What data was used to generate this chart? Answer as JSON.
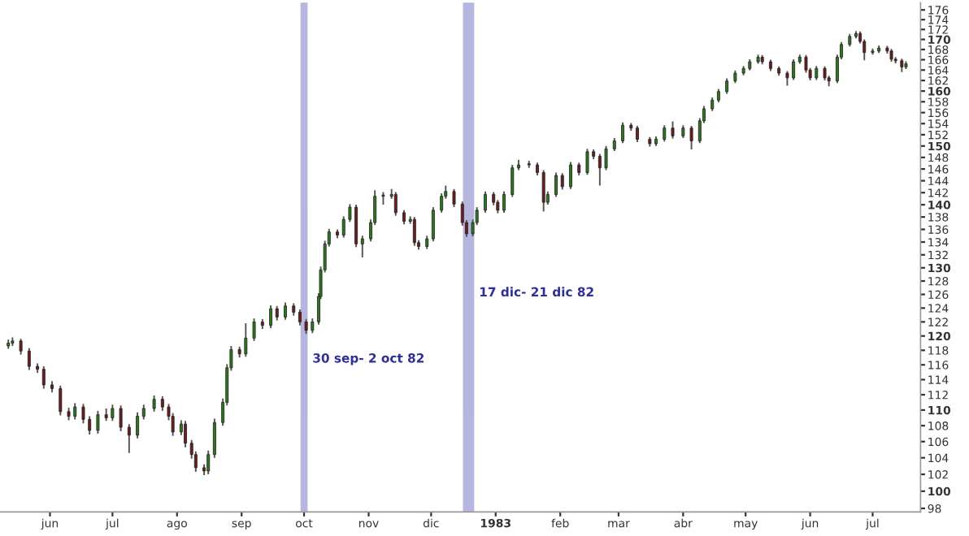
{
  "chart_data": {
    "type": "candlestick",
    "x": [
      "1982-05-12",
      "1982-05-14",
      "1982-05-18",
      "1982-05-22",
      "1982-05-26",
      "1982-05-29",
      "1982-06-02",
      "1982-06-06",
      "1982-06-10",
      "1982-06-13",
      "1982-06-17",
      "1982-06-20",
      "1982-06-24",
      "1982-06-28",
      "1982-07-01",
      "1982-07-05",
      "1982-07-09",
      "1982-07-13",
      "1982-07-16",
      "1982-07-21",
      "1982-07-25",
      "1982-07-28",
      "1982-07-30",
      "1982-08-03",
      "1982-08-05",
      "1982-08-08",
      "1982-08-10",
      "1982-08-14",
      "1982-08-16",
      "1982-08-19",
      "1982-08-23",
      "1982-08-25",
      "1982-08-27",
      "1982-08-31",
      "1982-09-03",
      "1982-09-07",
      "1982-09-11",
      "1982-09-15",
      "1982-09-18",
      "1982-09-22",
      "1982-09-26",
      "1982-09-29",
      "1982-10-02",
      "1982-10-05",
      "1982-10-08",
      "1982-10-09",
      "1982-10-11",
      "1982-10-13",
      "1982-10-17",
      "1982-10-20",
      "1982-10-23",
      "1982-10-26",
      "1982-10-29",
      "1982-11-02",
      "1982-11-04",
      "1982-11-08",
      "1982-11-12",
      "1982-11-14",
      "1982-11-18",
      "1982-11-21",
      "1982-11-23",
      "1982-11-25",
      "1982-11-29",
      "1982-12-02",
      "1982-12-06",
      "1982-12-08",
      "1982-12-12",
      "1982-12-16",
      "1982-12-18",
      "1982-12-21",
      "1982-12-23",
      "1982-12-27",
      "1982-12-31",
      "1983-01-02",
      "1983-01-05",
      "1983-01-09",
      "1983-01-12",
      "1983-01-17",
      "1983-01-21",
      "1983-01-24",
      "1983-01-26",
      "1983-01-30",
      "1983-02-02",
      "1983-02-06",
      "1983-02-10",
      "1983-02-14",
      "1983-02-17",
      "1983-02-20",
      "1983-02-23",
      "1983-02-27",
      "1983-03-03",
      "1983-03-07",
      "1983-03-10",
      "1983-03-16",
      "1983-03-19",
      "1983-03-23",
      "1983-03-27",
      "1983-04-01",
      "1983-04-05",
      "1983-04-09",
      "1983-04-11",
      "1983-04-15",
      "1983-04-18",
      "1983-04-22",
      "1983-04-26",
      "1983-04-30",
      "1983-05-03",
      "1983-05-07",
      "1983-05-09",
      "1983-05-13",
      "1983-05-17",
      "1983-05-21",
      "1983-05-24",
      "1983-05-27",
      "1983-05-30",
      "1983-06-01",
      "1983-06-04",
      "1983-06-08",
      "1983-06-10",
      "1983-06-14",
      "1983-06-16",
      "1983-06-20",
      "1983-06-23",
      "1983-06-25",
      "1983-06-27",
      "1983-07-01",
      "1983-07-04",
      "1983-07-08",
      "1983-07-10",
      "1983-07-12",
      "1983-07-15",
      "1983-07-17"
    ],
    "ohlc": [
      [
        118.6,
        119.5,
        118.2,
        119.0
      ],
      [
        119.0,
        119.8,
        118.6,
        119.3
      ],
      [
        119.3,
        119.6,
        117.4,
        117.9
      ],
      [
        117.9,
        118.3,
        115.3,
        115.8
      ],
      [
        115.8,
        116.2,
        114.9,
        115.4
      ],
      [
        115.4,
        115.8,
        112.8,
        113.3
      ],
      [
        113.3,
        113.8,
        112.3,
        112.8
      ],
      [
        112.8,
        113.2,
        109.3,
        109.8
      ],
      [
        109.8,
        110.3,
        108.7,
        109.2
      ],
      [
        109.2,
        110.9,
        108.8,
        110.4
      ],
      [
        110.4,
        110.8,
        108.3,
        108.8
      ],
      [
        108.8,
        109.2,
        106.9,
        107.4
      ],
      [
        107.4,
        109.9,
        107.0,
        109.4
      ],
      [
        109.4,
        110.2,
        108.6,
        109.0
      ],
      [
        109.0,
        110.7,
        108.6,
        110.2
      ],
      [
        110.2,
        110.6,
        107.3,
        107.8
      ],
      [
        107.8,
        108.2,
        104.6,
        106.8
      ],
      [
        106.8,
        109.7,
        106.4,
        109.2
      ],
      [
        109.2,
        110.7,
        108.8,
        110.2
      ],
      [
        110.2,
        111.9,
        109.8,
        111.4
      ],
      [
        111.4,
        111.8,
        109.9,
        110.4
      ],
      [
        110.4,
        110.8,
        108.7,
        109.2
      ],
      [
        109.2,
        109.6,
        106.7,
        107.2
      ],
      [
        107.2,
        108.7,
        106.8,
        108.2
      ],
      [
        108.2,
        108.6,
        105.3,
        105.8
      ],
      [
        105.8,
        106.2,
        103.9,
        104.4
      ],
      [
        104.4,
        104.8,
        102.3,
        102.8
      ],
      [
        102.8,
        103.2,
        101.9,
        102.4
      ],
      [
        102.4,
        104.9,
        102.0,
        104.4
      ],
      [
        104.4,
        108.9,
        104.0,
        108.4
      ],
      [
        108.4,
        111.5,
        108.0,
        111.0
      ],
      [
        111.0,
        116.1,
        110.6,
        115.6
      ],
      [
        115.6,
        118.6,
        115.2,
        118.1
      ],
      [
        118.1,
        118.5,
        117.0,
        117.5
      ],
      [
        117.5,
        121.8,
        117.1,
        119.7
      ],
      [
        119.7,
        122.5,
        119.3,
        122.0
      ],
      [
        122.0,
        122.4,
        121.0,
        121.5
      ],
      [
        121.5,
        124.4,
        121.1,
        123.9
      ],
      [
        123.9,
        124.3,
        122.2,
        122.7
      ],
      [
        122.7,
        124.8,
        122.3,
        124.3
      ],
      [
        124.3,
        124.7,
        122.9,
        123.4
      ],
      [
        123.4,
        123.8,
        121.5,
        122.0
      ],
      [
        122.0,
        122.4,
        120.3,
        120.8
      ],
      [
        120.8,
        122.5,
        120.4,
        122.0
      ],
      [
        122.0,
        126.2,
        121.6,
        125.7
      ],
      [
        125.7,
        130.2,
        125.3,
        129.7
      ],
      [
        129.7,
        134.2,
        129.3,
        133.7
      ],
      [
        133.7,
        136.1,
        133.3,
        135.6
      ],
      [
        135.6,
        136.0,
        134.6,
        135.1
      ],
      [
        135.1,
        138.1,
        134.7,
        137.6
      ],
      [
        137.6,
        140.1,
        137.2,
        139.6
      ],
      [
        139.6,
        140.0,
        133.2,
        133.7
      ],
      [
        133.7,
        135.0,
        131.6,
        134.5
      ],
      [
        134.5,
        137.6,
        134.1,
        137.1
      ],
      [
        137.1,
        142.4,
        136.7,
        141.4
      ],
      [
        141.4,
        142.1,
        140.0,
        141.4
      ],
      [
        141.4,
        142.6,
        141.0,
        141.7
      ],
      [
        141.7,
        142.1,
        138.2,
        138.7
      ],
      [
        138.7,
        139.1,
        136.8,
        137.3
      ],
      [
        137.3,
        138.1,
        136.9,
        137.6
      ],
      [
        137.6,
        138.0,
        133.4,
        133.9
      ],
      [
        133.9,
        134.3,
        132.8,
        133.3
      ],
      [
        133.3,
        135.0,
        132.9,
        134.5
      ],
      [
        134.5,
        139.6,
        134.1,
        139.1
      ],
      [
        139.1,
        141.9,
        138.7,
        141.4
      ],
      [
        141.4,
        143.2,
        141.0,
        142.2
      ],
      [
        142.2,
        142.6,
        139.6,
        140.1
      ],
      [
        140.1,
        140.5,
        136.6,
        137.1
      ],
      [
        137.1,
        137.5,
        134.8,
        135.3
      ],
      [
        135.3,
        137.6,
        134.9,
        137.1
      ],
      [
        137.1,
        139.6,
        136.7,
        139.1
      ],
      [
        139.1,
        142.2,
        138.7,
        141.7
      ],
      [
        141.7,
        142.1,
        139.9,
        140.4
      ],
      [
        140.4,
        140.8,
        138.6,
        139.1
      ],
      [
        139.1,
        142.2,
        138.7,
        141.7
      ],
      [
        141.7,
        146.7,
        141.3,
        146.2
      ],
      [
        146.2,
        147.6,
        145.8,
        146.7
      ],
      [
        146.7,
        147.4,
        146.2,
        146.7
      ],
      [
        146.7,
        147.1,
        144.9,
        145.4
      ],
      [
        145.4,
        145.8,
        138.9,
        140.4
      ],
      [
        140.4,
        142.2,
        140.0,
        141.7
      ],
      [
        141.7,
        145.4,
        141.3,
        144.9
      ],
      [
        144.9,
        145.3,
        142.5,
        143.0
      ],
      [
        143.0,
        147.2,
        142.6,
        146.7
      ],
      [
        146.7,
        147.1,
        144.9,
        145.4
      ],
      [
        145.4,
        149.5,
        145.0,
        149.0
      ],
      [
        149.0,
        149.4,
        147.7,
        148.2
      ],
      [
        148.2,
        148.6,
        143.2,
        146.2
      ],
      [
        146.2,
        150.0,
        145.8,
        149.5
      ],
      [
        149.5,
        151.4,
        149.1,
        150.9
      ],
      [
        150.9,
        154.2,
        150.5,
        153.7
      ],
      [
        153.7,
        154.1,
        152.7,
        153.2
      ],
      [
        153.2,
        153.6,
        150.7,
        151.2
      ],
      [
        151.2,
        151.6,
        149.9,
        150.4
      ],
      [
        150.4,
        151.7,
        150.0,
        151.2
      ],
      [
        151.2,
        153.7,
        150.8,
        153.2
      ],
      [
        153.2,
        154.4,
        151.3,
        151.8
      ],
      [
        151.8,
        153.7,
        151.4,
        153.2
      ],
      [
        153.2,
        153.6,
        149.4,
        150.9
      ],
      [
        150.9,
        155.0,
        150.5,
        154.5
      ],
      [
        154.5,
        157.2,
        154.1,
        156.7
      ],
      [
        156.7,
        158.8,
        156.3,
        158.3
      ],
      [
        158.3,
        160.4,
        157.9,
        159.9
      ],
      [
        159.9,
        162.4,
        159.5,
        161.9
      ],
      [
        161.9,
        163.9,
        161.5,
        163.4
      ],
      [
        163.4,
        164.8,
        163.0,
        164.3
      ],
      [
        164.3,
        166.1,
        163.9,
        165.6
      ],
      [
        165.6,
        167.0,
        165.2,
        166.5
      ],
      [
        166.5,
        166.9,
        165.1,
        165.6
      ],
      [
        165.6,
        166.0,
        163.8,
        164.3
      ],
      [
        164.3,
        164.7,
        162.9,
        163.4
      ],
      [
        163.4,
        163.8,
        161.0,
        162.5
      ],
      [
        162.5,
        166.1,
        162.1,
        165.6
      ],
      [
        165.6,
        167.0,
        165.2,
        166.5
      ],
      [
        166.5,
        166.9,
        163.5,
        164.0
      ],
      [
        164.0,
        164.4,
        162.0,
        162.5
      ],
      [
        162.5,
        164.8,
        162.1,
        164.3
      ],
      [
        164.3,
        164.7,
        162.0,
        162.5
      ],
      [
        162.5,
        162.9,
        160.9,
        161.9
      ],
      [
        161.9,
        167.0,
        161.5,
        166.5
      ],
      [
        166.5,
        169.5,
        166.1,
        169.0
      ],
      [
        169.0,
        171.1,
        168.6,
        170.6
      ],
      [
        170.6,
        171.7,
        170.2,
        171.2
      ],
      [
        171.2,
        171.6,
        169.2,
        169.6
      ],
      [
        169.6,
        170.0,
        165.9,
        167.4
      ],
      [
        167.4,
        168.2,
        167.0,
        167.7
      ],
      [
        167.7,
        168.8,
        167.3,
        168.3
      ],
      [
        168.3,
        168.7,
        167.2,
        167.7
      ],
      [
        167.7,
        168.1,
        165.6,
        166.1
      ],
      [
        166.1,
        166.5,
        165.3,
        165.8
      ],
      [
        165.8,
        166.2,
        163.6,
        164.6
      ],
      [
        164.6,
        165.7,
        164.2,
        165.2
      ]
    ],
    "xlim": [
      "1982-05-08",
      "1983-07-24"
    ],
    "xticks": [
      {
        "value": "1982-06-01",
        "label": "jun"
      },
      {
        "value": "1982-07-01",
        "label": "jul"
      },
      {
        "value": "1982-08-01",
        "label": "ago"
      },
      {
        "value": "1982-09-01",
        "label": "sep"
      },
      {
        "value": "1982-10-01",
        "label": "oct"
      },
      {
        "value": "1982-11-01",
        "label": "nov"
      },
      {
        "value": "1982-12-01",
        "label": "dic"
      },
      {
        "value": "1983-01-01",
        "label": "1983"
      },
      {
        "value": "1983-02-01",
        "label": "feb"
      },
      {
        "value": "1983-03-01",
        "label": "mar"
      },
      {
        "value": "1983-04-01",
        "label": "abr"
      },
      {
        "value": "1983-05-01",
        "label": "may"
      },
      {
        "value": "1983-06-01",
        "label": "jun"
      },
      {
        "value": "1983-07-01",
        "label": "jul"
      }
    ],
    "log": true,
    "ylim": [
      97.6,
      177.5
    ],
    "yticks": [
      98,
      100,
      102,
      104,
      106,
      108,
      110,
      112,
      114,
      116,
      118,
      120,
      122,
      124,
      126,
      128,
      130,
      132,
      134,
      136,
      138,
      140,
      142,
      144,
      146,
      148,
      150,
      152,
      154,
      156,
      158,
      160,
      162,
      164,
      166,
      168,
      170,
      172,
      174,
      176
    ],
    "bands": [
      {
        "axis": "x",
        "from": "1982-09-30",
        "to": "1982-10-02",
        "label": "30 sep- 2 oct 82",
        "color": "#7a7ac4"
      },
      {
        "axis": "x",
        "from": "1982-12-17",
        "to": "1982-12-21",
        "label": "17 dic- 21 dic 82",
        "color": "#7a7ac4"
      }
    ],
    "grid": false,
    "legend": false
  }
}
